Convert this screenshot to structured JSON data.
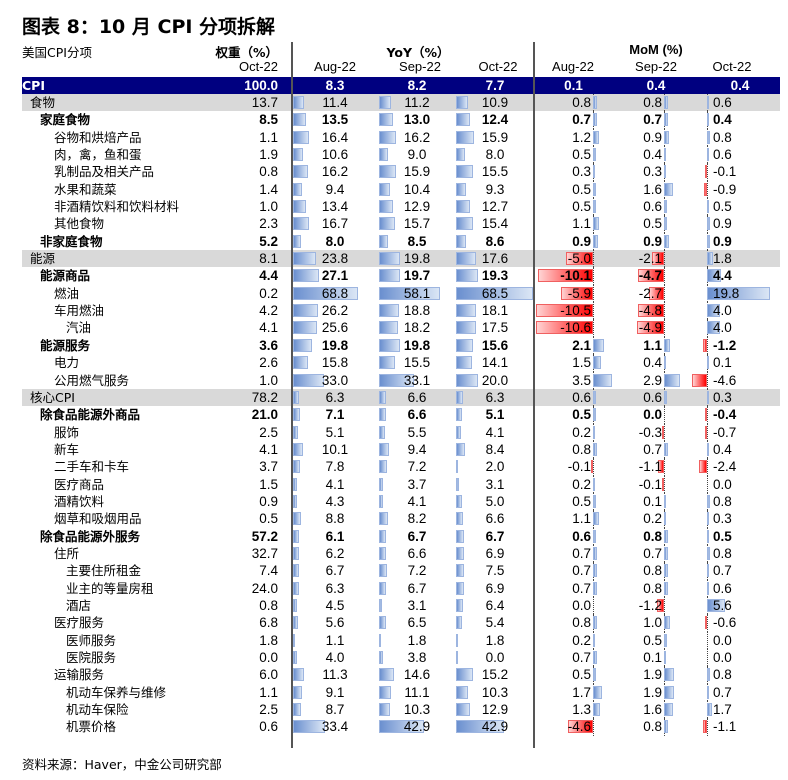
{
  "title": "图表 8：10 月 CPI 分项拆解",
  "header": {
    "item_label": "美国CPI分项",
    "weight_label": "权重（%）",
    "yoy_label": "YoY（%）",
    "mom_label": "MoM (%)",
    "weight_period": "Oct-22",
    "yoy_periods": [
      "Aug-22",
      "Sep-22",
      "Oct-22"
    ],
    "mom_periods": [
      "Aug-22",
      "Sep-22",
      "Oct-22"
    ]
  },
  "colors": {
    "cpi_row_bg": "#000080",
    "highlight_row_bg": "#d9d9d9",
    "positive_bar": "#6a8fcf",
    "negative_bar": "#ff0000"
  },
  "rows": [
    {
      "label": "CPI",
      "indent": 0,
      "style": "cpi",
      "weight": "100.0",
      "yoy": [
        "8.3",
        "8.2",
        "7.7"
      ],
      "mom": [
        "0.1",
        "0.4",
        "0.4"
      ]
    },
    {
      "label": "食物",
      "indent": 1,
      "style": "hl",
      "weight": "13.7",
      "yoy": [
        "11.4",
        "11.2",
        "10.9"
      ],
      "mom": [
        "0.8",
        "0.8",
        "0.6"
      ]
    },
    {
      "label": "家庭食物",
      "indent": 2,
      "style": "bold",
      "weight": "8.5",
      "yoy": [
        "13.5",
        "13.0",
        "12.4"
      ],
      "mom": [
        "0.7",
        "0.7",
        "0.4"
      ]
    },
    {
      "label": "谷物和烘焙产品",
      "indent": 3,
      "style": "",
      "weight": "1.1",
      "yoy": [
        "16.4",
        "16.2",
        "15.9"
      ],
      "mom": [
        "1.2",
        "0.9",
        "0.8"
      ]
    },
    {
      "label": "肉，禽，鱼和蛋",
      "indent": 3,
      "style": "",
      "weight": "1.9",
      "yoy": [
        "10.6",
        "9.0",
        "8.0"
      ],
      "mom": [
        "0.5",
        "0.4",
        "0.6"
      ]
    },
    {
      "label": "乳制品及相关产品",
      "indent": 3,
      "style": "",
      "weight": "0.8",
      "yoy": [
        "16.2",
        "15.9",
        "15.5"
      ],
      "mom": [
        "0.3",
        "0.3",
        "-0.1"
      ]
    },
    {
      "label": "水果和蔬菜",
      "indent": 3,
      "style": "",
      "weight": "1.4",
      "yoy": [
        "9.4",
        "10.4",
        "9.3"
      ],
      "mom": [
        "0.5",
        "1.6",
        "-0.9"
      ]
    },
    {
      "label": "非酒精饮料和饮料材料",
      "indent": 3,
      "style": "",
      "weight": "1.0",
      "yoy": [
        "13.4",
        "12.9",
        "12.7"
      ],
      "mom": [
        "0.5",
        "0.6",
        "0.5"
      ]
    },
    {
      "label": "其他食物",
      "indent": 3,
      "style": "",
      "weight": "2.3",
      "yoy": [
        "16.7",
        "15.7",
        "15.4"
      ],
      "mom": [
        "1.1",
        "0.5",
        "0.9"
      ]
    },
    {
      "label": "非家庭食物",
      "indent": 2,
      "style": "bold",
      "weight": "5.2",
      "yoy": [
        "8.0",
        "8.5",
        "8.6"
      ],
      "mom": [
        "0.9",
        "0.9",
        "0.9"
      ]
    },
    {
      "label": "能源",
      "indent": 1,
      "style": "hl",
      "weight": "8.1",
      "yoy": [
        "23.8",
        "19.8",
        "17.6"
      ],
      "mom": [
        "-5.0",
        "-2.1",
        "1.8"
      ]
    },
    {
      "label": "能源商品",
      "indent": 2,
      "style": "bold",
      "weight": "4.4",
      "yoy": [
        "27.1",
        "19.7",
        "19.3"
      ],
      "mom": [
        "-10.1",
        "-4.7",
        "4.4"
      ]
    },
    {
      "label": "燃油",
      "indent": 3,
      "style": "",
      "weight": "0.2",
      "yoy": [
        "68.8",
        "58.1",
        "68.5"
      ],
      "mom": [
        "-5.9",
        "-2.7",
        "19.8"
      ]
    },
    {
      "label": "车用燃油",
      "indent": 3,
      "style": "",
      "weight": "4.2",
      "yoy": [
        "26.2",
        "18.8",
        "18.1"
      ],
      "mom": [
        "-10.5",
        "-4.8",
        "4.0"
      ]
    },
    {
      "label": "汽油",
      "indent": 4,
      "style": "",
      "weight": "4.1",
      "yoy": [
        "25.6",
        "18.2",
        "17.5"
      ],
      "mom": [
        "-10.6",
        "-4.9",
        "4.0"
      ]
    },
    {
      "label": "能源服务",
      "indent": 2,
      "style": "bold",
      "weight": "3.6",
      "yoy": [
        "19.8",
        "19.8",
        "15.6"
      ],
      "mom": [
        "2.1",
        "1.1",
        "-1.2"
      ]
    },
    {
      "label": "电力",
      "indent": 3,
      "style": "",
      "weight": "2.6",
      "yoy": [
        "15.8",
        "15.5",
        "14.1"
      ],
      "mom": [
        "1.5",
        "0.4",
        "0.1"
      ]
    },
    {
      "label": "公用燃气服务",
      "indent": 3,
      "style": "",
      "weight": "1.0",
      "yoy": [
        "33.0",
        "33.1",
        "20.0"
      ],
      "mom": [
        "3.5",
        "2.9",
        "-4.6"
      ]
    },
    {
      "label": "核心CPI",
      "indent": 1,
      "style": "hl",
      "weight": "78.2",
      "yoy": [
        "6.3",
        "6.6",
        "6.3"
      ],
      "mom": [
        "0.6",
        "0.6",
        "0.3"
      ]
    },
    {
      "label": "除食品能源外商品",
      "indent": 2,
      "style": "bold",
      "weight": "21.0",
      "yoy": [
        "7.1",
        "6.6",
        "5.1"
      ],
      "mom": [
        "0.5",
        "0.0",
        "-0.4"
      ]
    },
    {
      "label": "服饰",
      "indent": 3,
      "style": "",
      "weight": "2.5",
      "yoy": [
        "5.1",
        "5.5",
        "4.1"
      ],
      "mom": [
        "0.2",
        "-0.3",
        "-0.7"
      ]
    },
    {
      "label": "新车",
      "indent": 3,
      "style": "",
      "weight": "4.1",
      "yoy": [
        "10.1",
        "9.4",
        "8.4"
      ],
      "mom": [
        "0.8",
        "0.7",
        "0.4"
      ]
    },
    {
      "label": "二手车和卡车",
      "indent": 3,
      "style": "",
      "weight": "3.7",
      "yoy": [
        "7.8",
        "7.2",
        "2.0"
      ],
      "mom": [
        "-0.1",
        "-1.1",
        "-2.4"
      ]
    },
    {
      "label": "医疗商品",
      "indent": 3,
      "style": "",
      "weight": "1.5",
      "yoy": [
        "4.1",
        "3.7",
        "3.1"
      ],
      "mom": [
        "0.2",
        "-0.1",
        "0.0"
      ]
    },
    {
      "label": "酒精饮料",
      "indent": 3,
      "style": "",
      "weight": "0.9",
      "yoy": [
        "4.3",
        "4.1",
        "5.0"
      ],
      "mom": [
        "0.5",
        "0.1",
        "0.8"
      ]
    },
    {
      "label": "烟草和吸烟用品",
      "indent": 3,
      "style": "",
      "weight": "0.5",
      "yoy": [
        "8.8",
        "8.2",
        "6.6"
      ],
      "mom": [
        "1.1",
        "0.2",
        "0.3"
      ]
    },
    {
      "label": "除食品能源外服务",
      "indent": 2,
      "style": "bold",
      "weight": "57.2",
      "yoy": [
        "6.1",
        "6.7",
        "6.7"
      ],
      "mom": [
        "0.6",
        "0.8",
        "0.5"
      ]
    },
    {
      "label": "住所",
      "indent": 3,
      "style": "",
      "weight": "32.7",
      "yoy": [
        "6.2",
        "6.6",
        "6.9"
      ],
      "mom": [
        "0.7",
        "0.7",
        "0.8"
      ]
    },
    {
      "label": "主要住所租金",
      "indent": 4,
      "style": "",
      "weight": "7.4",
      "yoy": [
        "6.7",
        "7.2",
        "7.5"
      ],
      "mom": [
        "0.7",
        "0.8",
        "0.7"
      ]
    },
    {
      "label": "业主的等量房租",
      "indent": 4,
      "style": "",
      "weight": "24.0",
      "yoy": [
        "6.3",
        "6.7",
        "6.9"
      ],
      "mom": [
        "0.7",
        "0.8",
        "0.6"
      ]
    },
    {
      "label": "酒店",
      "indent": 4,
      "style": "",
      "weight": "0.8",
      "yoy": [
        "4.5",
        "3.1",
        "6.4"
      ],
      "mom": [
        "0.0",
        "-1.2",
        "5.6"
      ]
    },
    {
      "label": "医疗服务",
      "indent": 3,
      "style": "",
      "weight": "6.8",
      "yoy": [
        "5.6",
        "6.5",
        "5.4"
      ],
      "mom": [
        "0.8",
        "1.0",
        "-0.6"
      ]
    },
    {
      "label": "医师服务",
      "indent": 4,
      "style": "",
      "weight": "1.8",
      "yoy": [
        "1.1",
        "1.8",
        "1.8"
      ],
      "mom": [
        "0.2",
        "0.5",
        "0.0"
      ]
    },
    {
      "label": "医院服务",
      "indent": 4,
      "style": "",
      "weight": "0.0",
      "yoy": [
        "4.0",
        "3.8",
        "0.0"
      ],
      "mom": [
        "0.7",
        "0.1",
        "0.0"
      ]
    },
    {
      "label": "运输服务",
      "indent": 3,
      "style": "",
      "weight": "6.0",
      "yoy": [
        "11.3",
        "14.6",
        "15.2"
      ],
      "mom": [
        "0.5",
        "1.9",
        "0.8"
      ]
    },
    {
      "label": "机动车保养与维修",
      "indent": 4,
      "style": "",
      "weight": "1.1",
      "yoy": [
        "9.1",
        "11.1",
        "10.3"
      ],
      "mom": [
        "1.7",
        "1.9",
        "0.7"
      ]
    },
    {
      "label": "机动车保险",
      "indent": 4,
      "style": "",
      "weight": "2.5",
      "yoy": [
        "8.7",
        "10.3",
        "12.9"
      ],
      "mom": [
        "1.3",
        "1.6",
        "1.7"
      ]
    },
    {
      "label": "机票价格",
      "indent": 4,
      "style": "",
      "weight": "0.6",
      "yoy": [
        "33.4",
        "42.9",
        "42.9"
      ],
      "mom": [
        "-4.6",
        "0.8",
        "-1.1"
      ]
    }
  ],
  "source": "资料来源：Haver，中金公司研究部"
}
